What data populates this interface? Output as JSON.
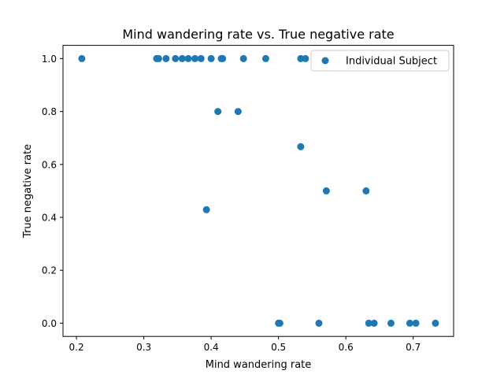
{
  "chart_data": {
    "type": "scatter",
    "title": "Mind wandering rate vs. True negative rate",
    "xlabel": "Mind wandering rate",
    "ylabel": "True negative rate",
    "xlim": [
      0.18,
      0.76
    ],
    "ylim": [
      -0.05,
      1.05
    ],
    "xticks": [
      0.2,
      0.3,
      0.4,
      0.5,
      0.6,
      0.7
    ],
    "yticks": [
      0.0,
      0.2,
      0.4,
      0.6,
      0.8,
      1.0
    ],
    "xtick_labels": [
      "0.2",
      "0.3",
      "0.4",
      "0.5",
      "0.6",
      "0.7"
    ],
    "ytick_labels": [
      "0.0",
      "0.2",
      "0.4",
      "0.6",
      "0.8",
      "1.0"
    ],
    "grid": false,
    "legend_position": "top-right",
    "color": "#1f77b4",
    "series": [
      {
        "name": "Individual Subject",
        "points": [
          [
            0.208,
            1.0
          ],
          [
            0.319,
            1.0
          ],
          [
            0.322,
            1.0
          ],
          [
            0.333,
            1.0
          ],
          [
            0.347,
            1.0
          ],
          [
            0.357,
            1.0
          ],
          [
            0.366,
            1.0
          ],
          [
            0.376,
            1.0
          ],
          [
            0.385,
            1.0
          ],
          [
            0.4,
            1.0
          ],
          [
            0.415,
            1.0
          ],
          [
            0.417,
            1.0
          ],
          [
            0.448,
            1.0
          ],
          [
            0.481,
            1.0
          ],
          [
            0.533,
            1.0
          ],
          [
            0.54,
            1.0
          ],
          [
            0.41,
            0.8
          ],
          [
            0.44,
            0.8
          ],
          [
            0.533,
            0.667
          ],
          [
            0.571,
            0.5
          ],
          [
            0.63,
            0.5
          ],
          [
            0.393,
            0.429
          ],
          [
            0.5,
            0.0
          ],
          [
            0.502,
            0.0
          ],
          [
            0.56,
            0.0
          ],
          [
            0.634,
            0.0
          ],
          [
            0.642,
            0.0
          ],
          [
            0.667,
            0.0
          ],
          [
            0.695,
            0.0
          ],
          [
            0.704,
            0.0
          ],
          [
            0.733,
            0.0
          ]
        ]
      }
    ]
  }
}
